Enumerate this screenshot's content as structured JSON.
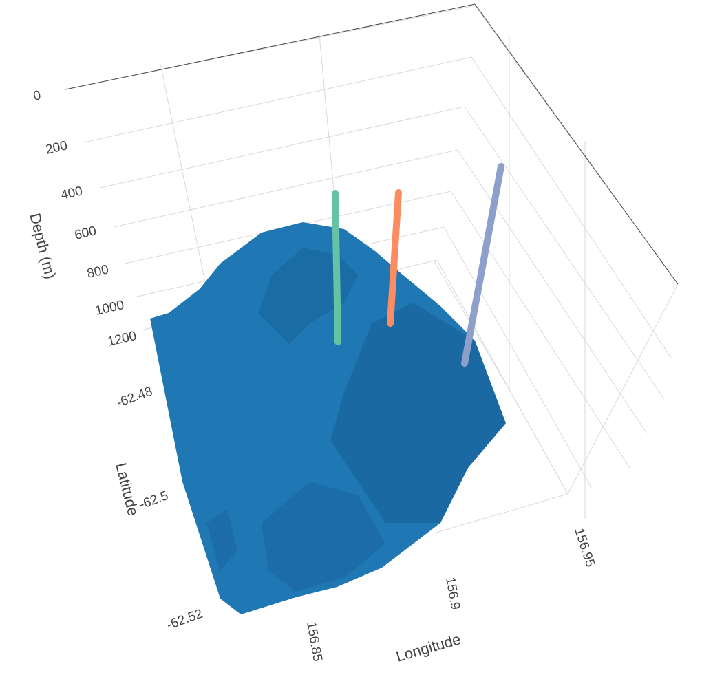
{
  "chart_data": {
    "type": "surface3d",
    "surface": {
      "name": "bathymetry",
      "color": "#1f77b4"
    },
    "axes": {
      "x": {
        "title": "Longitude",
        "ticks": [
          "156.85",
          "156.9",
          "156.95"
        ]
      },
      "y": {
        "title": "Latitude",
        "ticks": [
          "-62.48",
          "-62.5",
          "-62.52"
        ]
      },
      "z": {
        "title": "Depth (m)",
        "reversed": true,
        "ticks": [
          "0",
          "200",
          "400",
          "600",
          "800",
          "1000",
          "1200"
        ]
      }
    },
    "lines": [
      {
        "color": "#66c2a5",
        "depth_top": 700,
        "depth_bottom": 1250
      },
      {
        "color": "#fc8d62",
        "depth_top": 700,
        "depth_bottom": 1250
      },
      {
        "color": "#8da0cb",
        "depth_top": 700,
        "depth_bottom": 1250
      }
    ],
    "grid": true
  }
}
